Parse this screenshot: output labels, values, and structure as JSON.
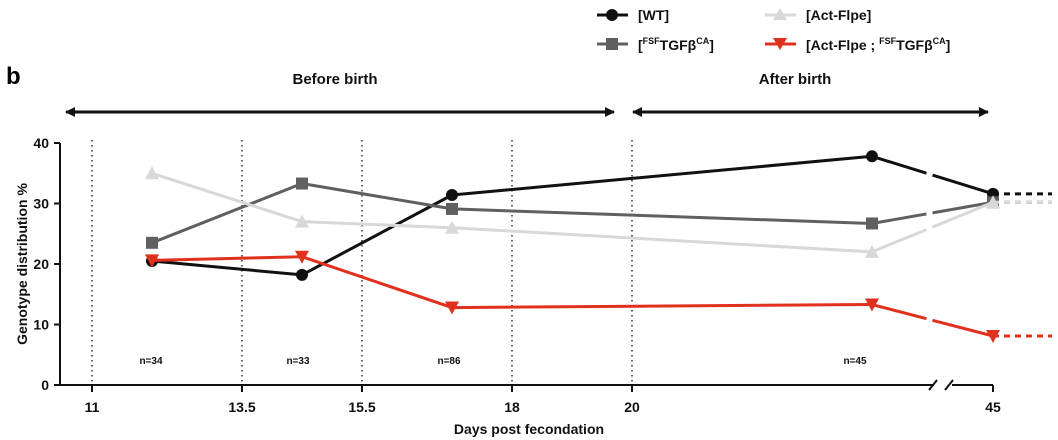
{
  "panel_label": "b",
  "periods": {
    "before": "Before birth",
    "after": "After birth"
  },
  "chart_data": {
    "type": "line",
    "xlabel": "Days post fecondation",
    "ylabel": "Genotype distribution %",
    "ylim": [
      0,
      40
    ],
    "yticks": [
      "0",
      "10",
      "20",
      "30",
      "40"
    ],
    "xticks": [
      "11",
      "13.5",
      "15.5",
      "18",
      "20",
      "45"
    ],
    "x_axis_break": "between 20 and 45",
    "vertical_dotted_lines_at": [
      "11",
      "13.5",
      "15.5",
      "18",
      "20"
    ],
    "sample_sizes": [
      "n=34",
      "n=33",
      "n=86",
      "n=45"
    ],
    "x": [
      "12",
      "14.5",
      "17",
      "24",
      "45"
    ],
    "legend_placement": "top-right",
    "series": [
      {
        "key": "wt",
        "color": "#111111",
        "marker": "circle",
        "values": [
          20.5,
          18.2,
          31.4,
          37.8,
          31.6
        ]
      },
      {
        "key": "fsf",
        "color": "#606060",
        "marker": "square",
        "values": [
          23.5,
          33.3,
          29.1,
          26.7,
          30.2
        ]
      },
      {
        "key": "act",
        "color": "#d8d8d8",
        "marker": "triangle-up",
        "values": [
          35.0,
          27.0,
          26.0,
          22.0,
          30.2
        ]
      },
      {
        "key": "double",
        "color": "#e0301e",
        "marker": "triangle-down",
        "values": [
          20.6,
          21.2,
          12.8,
          13.3,
          8.1
        ]
      }
    ],
    "legend": {
      "wt": "[WT]",
      "act": "[Act-Flpe]",
      "fsf_open": "[",
      "fsf_sup": "FSF",
      "fsf_main": "TGFβ",
      "fsf_sup2": "CA",
      "fsf_close": "]",
      "double_open": "[Act-Flpe ; ",
      "double_sup": "FSF",
      "double_main": "TGFβ",
      "double_sup2": "CA",
      "double_close": "]"
    }
  }
}
